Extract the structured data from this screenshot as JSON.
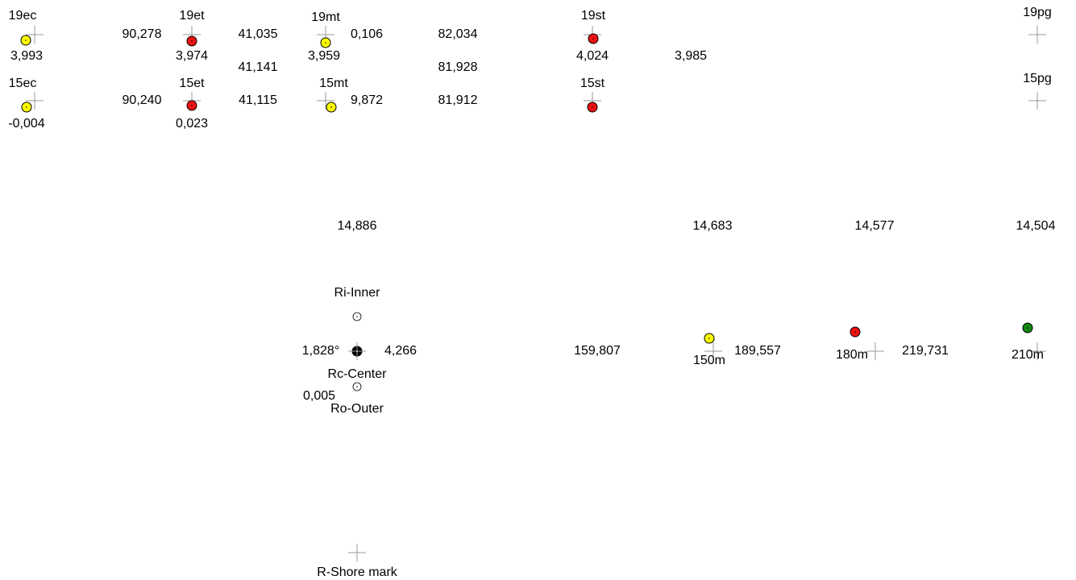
{
  "points": [
    {
      "label": "19ec"
    },
    {
      "label": "19et"
    },
    {
      "label": "19mt"
    },
    {
      "label": "19st"
    },
    {
      "label": "19pg"
    },
    {
      "label": "15ec"
    },
    {
      "label": "15et"
    },
    {
      "label": "15mt"
    },
    {
      "label": "15st"
    },
    {
      "label": "15pg"
    },
    {
      "label": "Ri-Inner"
    },
    {
      "label": "Rc-Center"
    },
    {
      "label": "Ro-Outer"
    },
    {
      "label": "R-Shore mark"
    },
    {
      "label": "150m"
    },
    {
      "label": "180m"
    },
    {
      "label": "210m"
    }
  ],
  "values": [
    "3,993",
    "90,278",
    "3,974",
    "41,035",
    "41,141",
    "0,106",
    "3,959",
    "82,034",
    "81,928",
    "4,024",
    "3,985",
    "-0,004",
    "90,240",
    "0,023",
    "41,115",
    "9,872",
    "81,912",
    "14,886",
    "14,683",
    "14,577",
    "14,504",
    "1,828°",
    "4,266",
    "0,005",
    "159,807",
    "189,557",
    "219,731"
  ]
}
